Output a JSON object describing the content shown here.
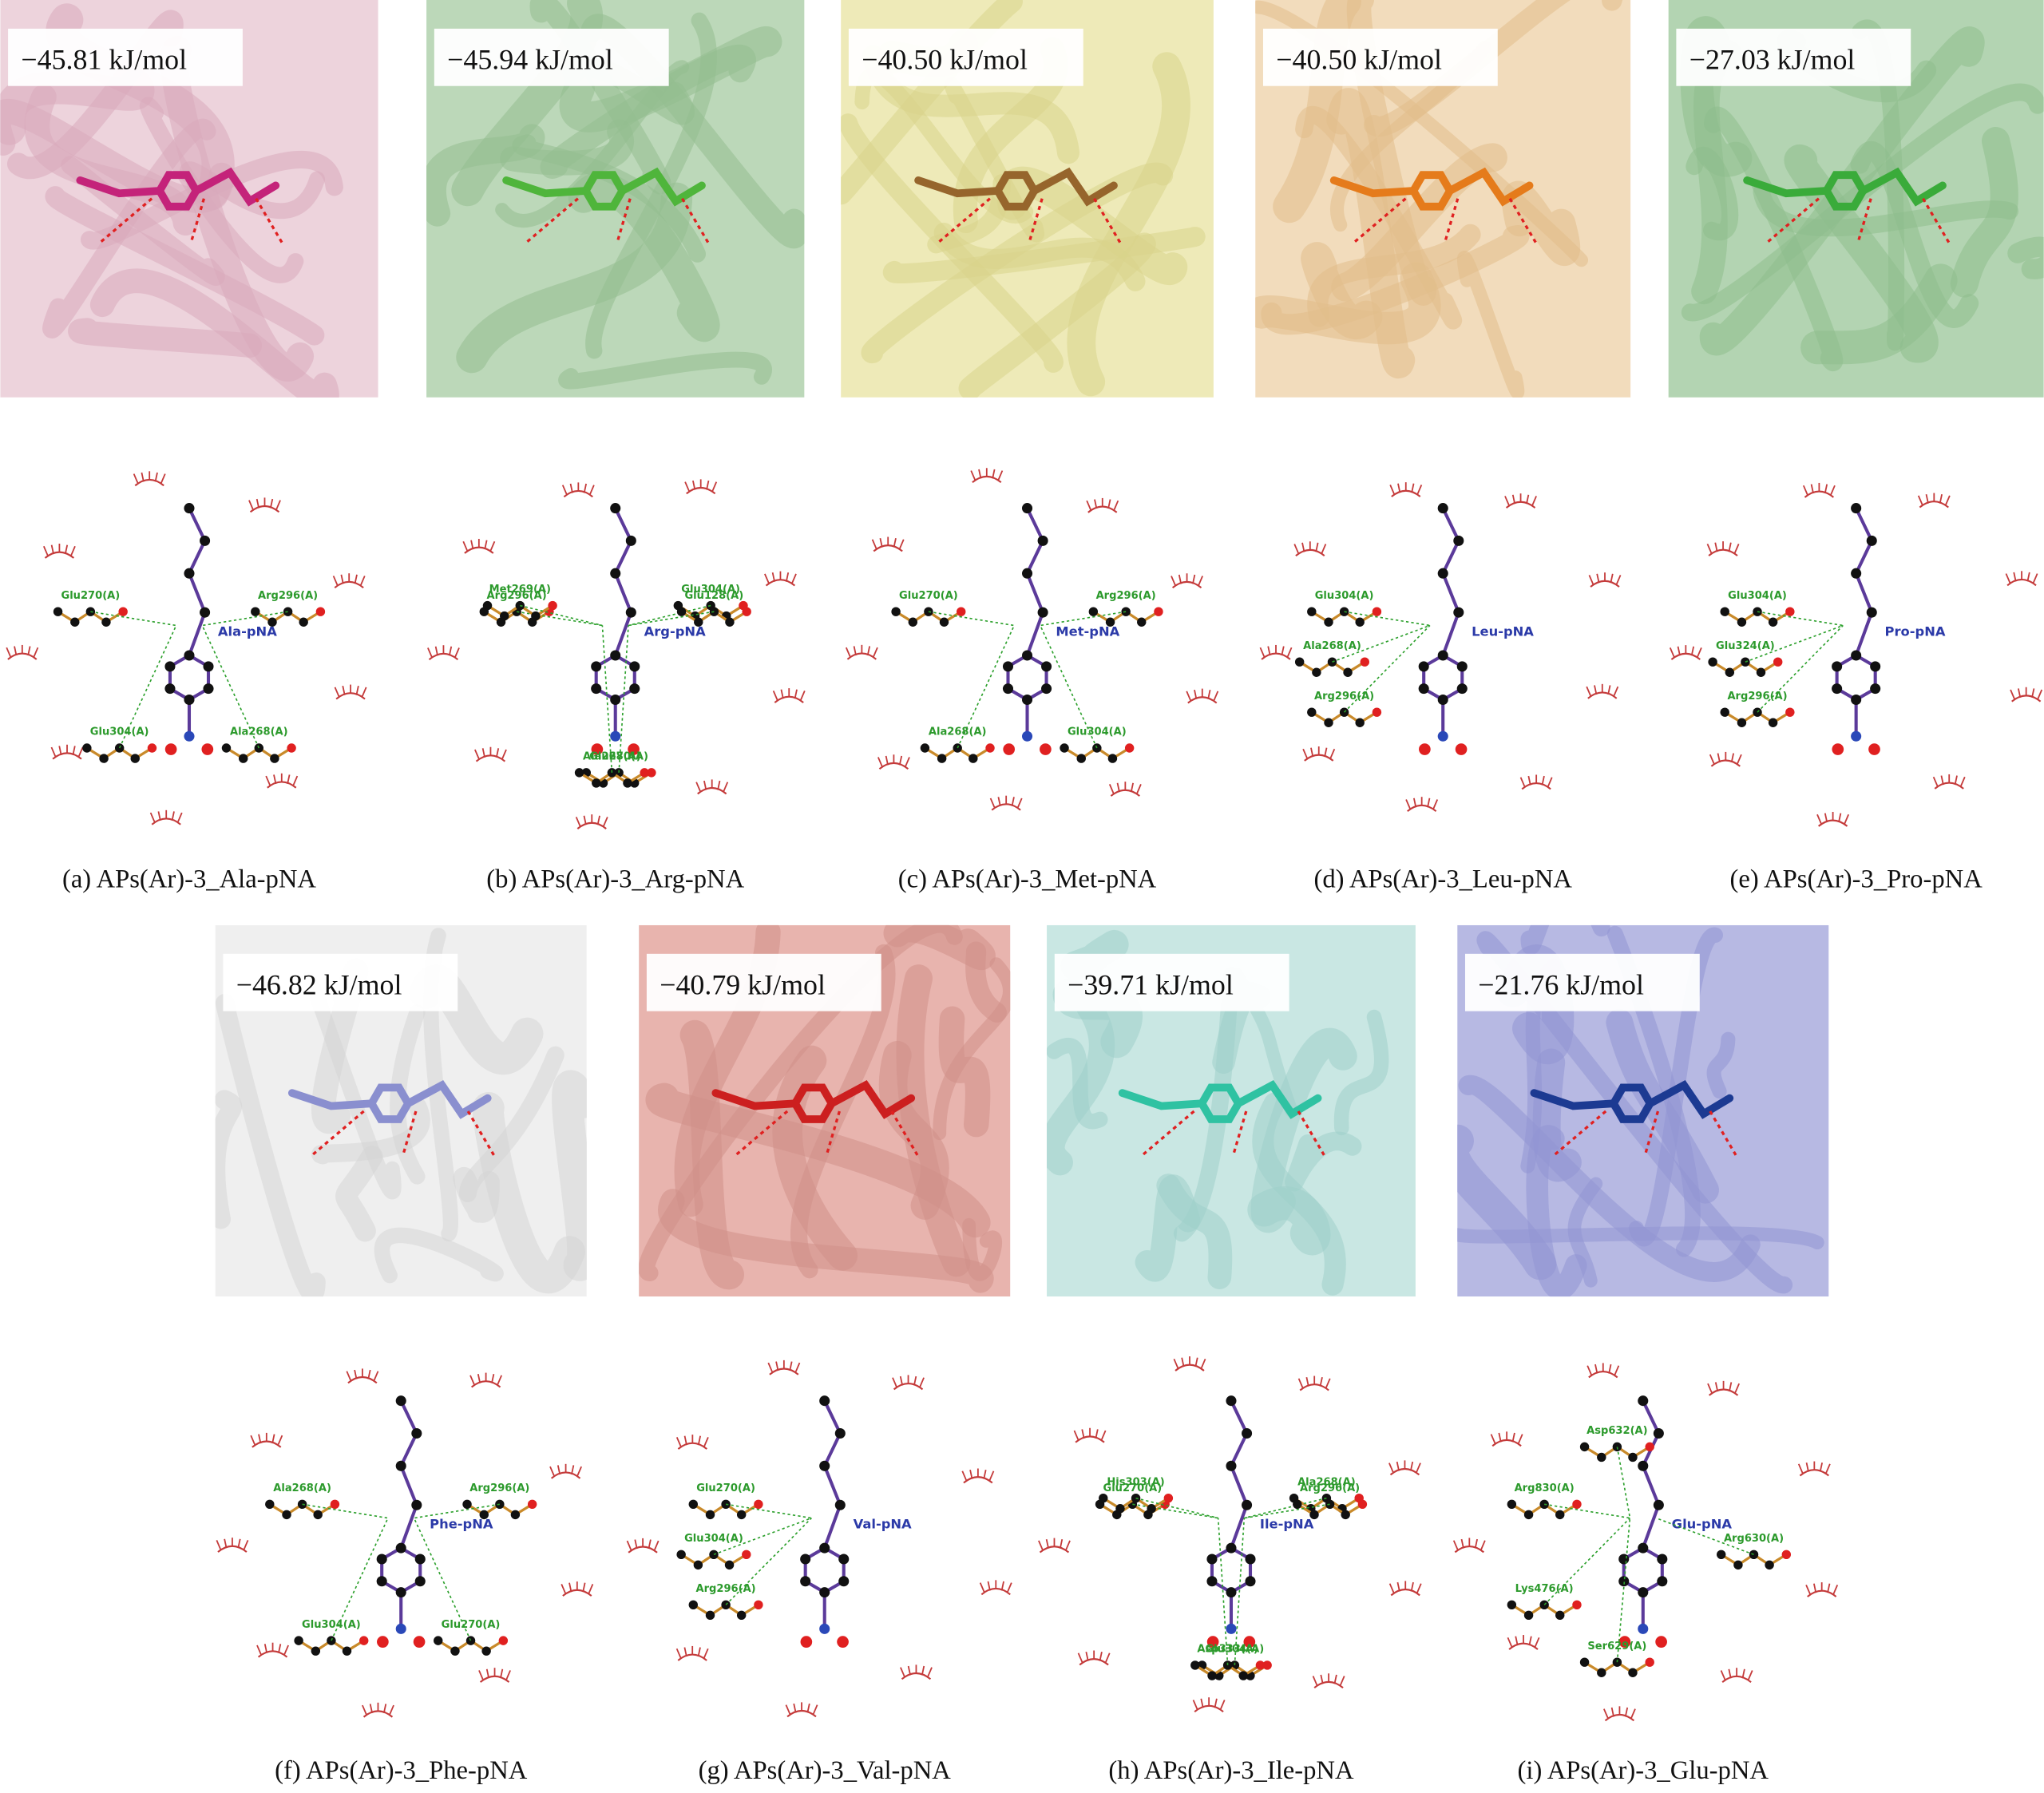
{
  "panels": [
    {
      "energy": "−45.81 kJ/mol",
      "caption": "(a) APs(Ar)-3_Ala-pNA",
      "ligand": "Ala-pNA",
      "residues": [
        "Glu270(A)",
        "Glu304(A)",
        "Ala268(A)",
        "Arg296(A)"
      ]
    },
    {
      "energy": "−45.94 kJ/mol",
      "caption": "(b) APs(Ar)-3_Arg-pNA",
      "ligand": "Arg-pNA",
      "residues": [
        "Arg296(A)",
        "Glu270(A)",
        "Glu304(A)",
        "Met269(A)",
        "Ala268(A)",
        "Glu128(A)"
      ]
    },
    {
      "energy": "−40.50 kJ/mol",
      "caption": "(c) APs(Ar)-3_Met-pNA",
      "ligand": "Met-pNA",
      "residues": [
        "Glu270(A)",
        "Ala268(A)",
        "Glu304(A)",
        "Arg296(A)"
      ]
    },
    {
      "energy": "−40.50 kJ/mol",
      "caption": "(d) APs(Ar)-3_Leu-pNA",
      "ligand": "Leu-pNA",
      "residues": [
        "Glu304(A)",
        "Ala268(A)",
        "Arg296(A)"
      ]
    },
    {
      "energy": "−27.03 kJ/mol",
      "caption": "(e) APs(Ar)-3_Pro-pNA",
      "ligand": "Pro-pNA",
      "residues": [
        "Glu304(A)",
        "Glu324(A)",
        "Arg296(A)"
      ]
    },
    {
      "energy": "−46.82 kJ/mol",
      "caption": "(f) APs(Ar)-3_Phe-pNA",
      "ligand": "Phe-pNA",
      "residues": [
        "Ala268(A)",
        "Glu304(A)",
        "Glu270(A)",
        "Arg296(A)"
      ]
    },
    {
      "energy": "−40.79 kJ/mol",
      "caption": "(g) APs(Ar)-3_Val-pNA",
      "ligand": "Val-pNA",
      "residues": [
        "Glu270(A)",
        "Glu304(A)",
        "Arg296(A)"
      ]
    },
    {
      "energy": "−39.71 kJ/mol",
      "caption": "(h) APs(Ar)-3_Ile-pNA",
      "ligand": "Ile-pNA",
      "residues": [
        "Glu270(A)",
        "Glu304(A)",
        "Ala268(A)",
        "His303(A)",
        "Asp333(A)",
        "Arg296(A)"
      ]
    },
    {
      "energy": "−21.76 kJ/mol",
      "caption": "(i) APs(Ar)-3_Glu-pNA",
      "ligand": "Glu-pNA",
      "residues": [
        "Arg830(A)",
        "Ser629(A)",
        "Arg630(A)",
        "Asp632(A)",
        "Lys476(A)"
      ]
    }
  ]
}
